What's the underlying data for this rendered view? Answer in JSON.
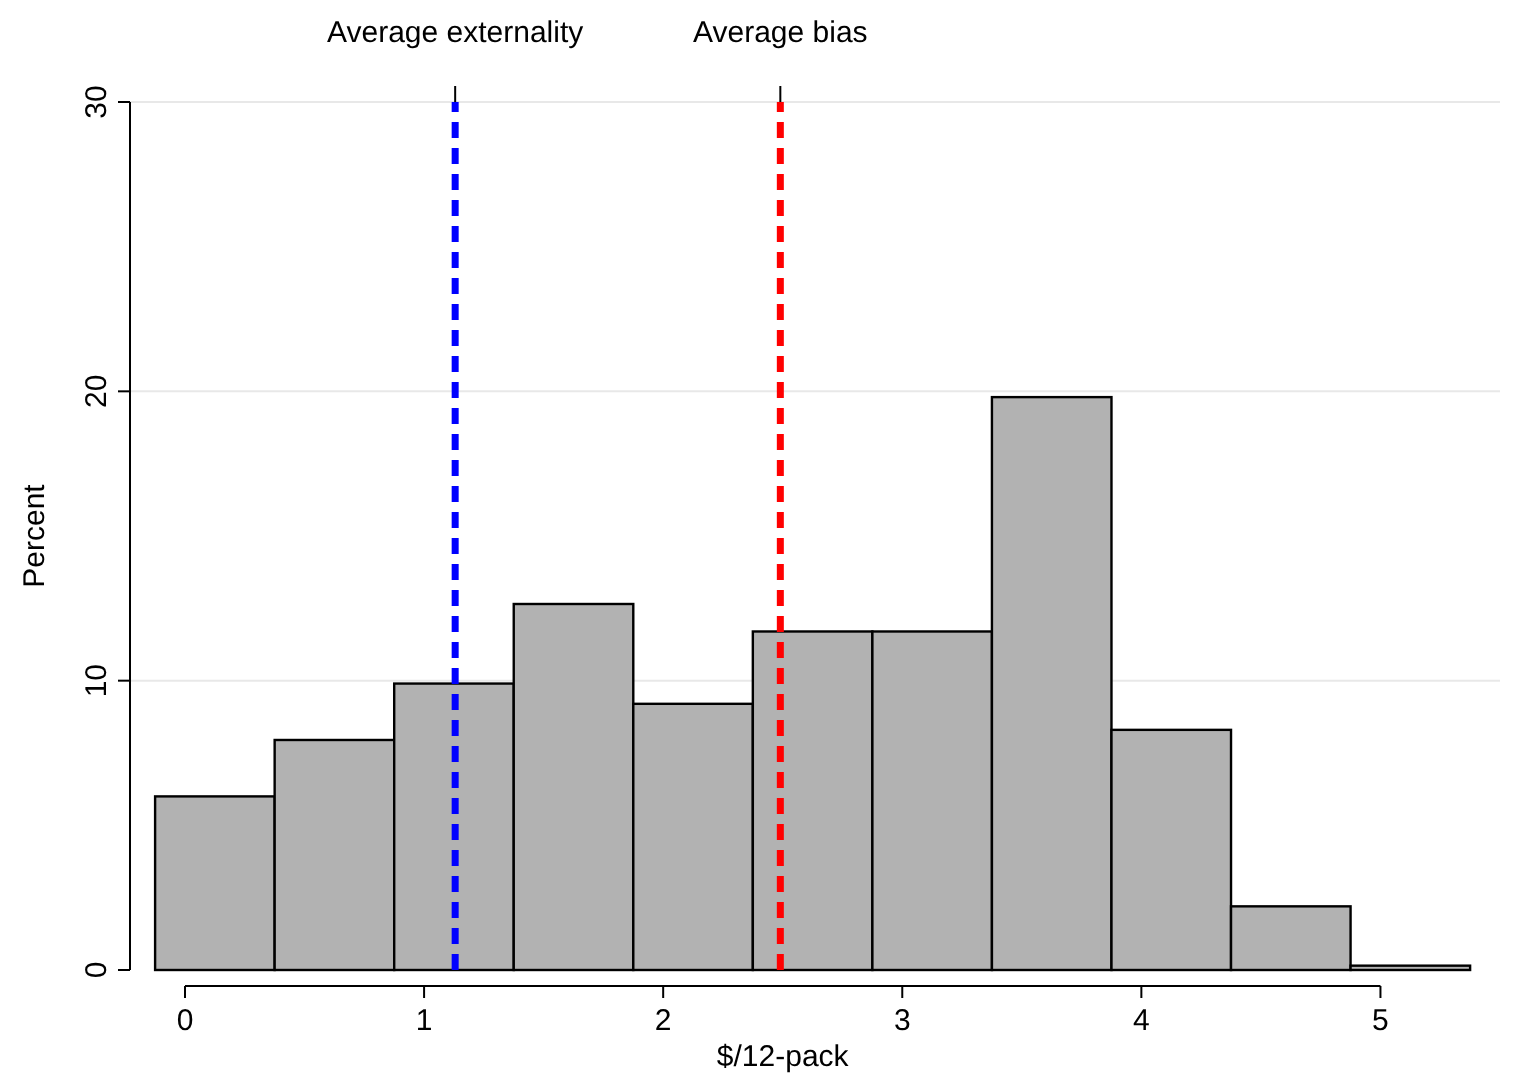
{
  "chart_data": {
    "type": "histogram",
    "xlabel": "$/12-pack",
    "ylabel": "Percent",
    "bins": [
      -0.125,
      0.375,
      0.875,
      1.375,
      1.875,
      2.375,
      2.875,
      3.375,
      3.875,
      4.375,
      4.875,
      5.375
    ],
    "values": [
      6.0,
      7.95,
      9.9,
      12.65,
      9.2,
      11.7,
      11.7,
      19.8,
      8.3,
      2.2,
      0.15
    ],
    "color": "#b2b2b2",
    "xlim": [
      -0.23,
      5.5
    ],
    "xticks": [
      0,
      1,
      2,
      3,
      4,
      5
    ],
    "ylim": [
      0,
      30
    ],
    "yticks": [
      0,
      10,
      20,
      30
    ],
    "grid": "y",
    "ref_lines": [
      {
        "axis": "x",
        "value": 1.13,
        "label": "Average externality",
        "color": "#0000ff",
        "line_style": "dashed"
      },
      {
        "axis": "x",
        "value": 2.49,
        "label": "Average bias",
        "color": "#ff0000",
        "line_style": "dashed"
      }
    ]
  }
}
